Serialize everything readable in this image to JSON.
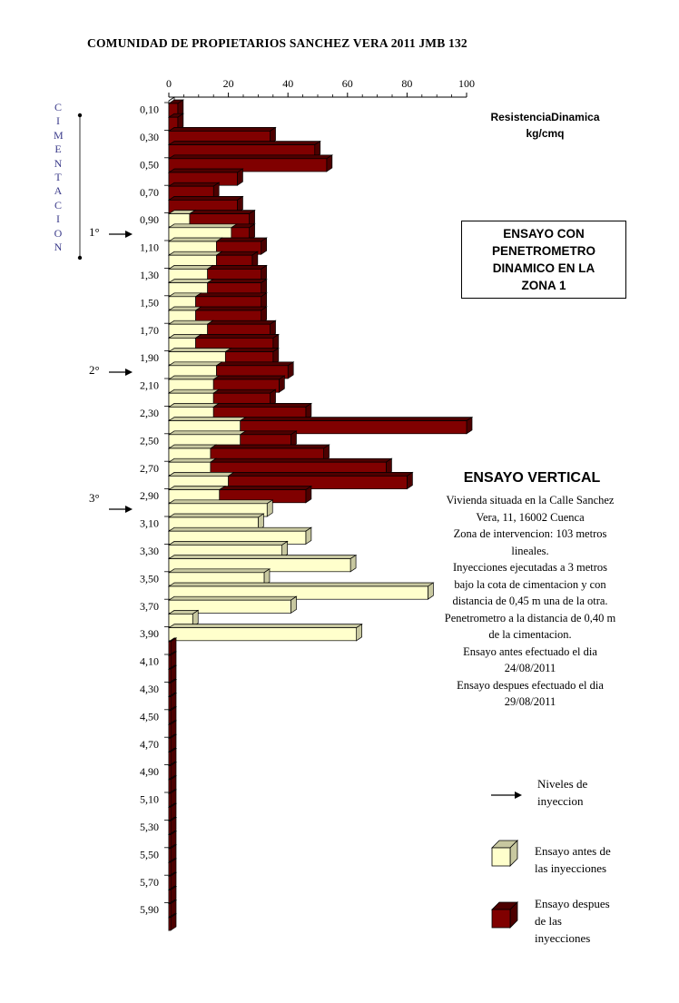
{
  "header": {
    "title": "COMUNIDAD DE PROPIETARIOS SANCHEZ VERA   2011 JMB 132"
  },
  "side_label": {
    "letters": [
      "C",
      "I",
      "M",
      "E",
      "N",
      "T",
      "A",
      "C",
      "I",
      "O",
      "N"
    ]
  },
  "injection_levels": [
    "1°",
    "2°",
    "3°"
  ],
  "unit_label": [
    "ResistenciaDinamica",
    "kg/cmq"
  ],
  "zone_box": [
    "ENSAYO CON",
    "PENETROMETRO",
    "DINAMICO EN LA",
    "ZONA 1"
  ],
  "description": {
    "title": "ENSAYO VERTICAL",
    "lines": [
      "Vivienda situada en la Calle Sanchez",
      "Vera, 11, 16002 Cuenca",
      "Zona de intervencion: 103 metros",
      "lineales.",
      "Inyecciones ejecutadas a  3 metros",
      "bajo la cota de cimentacion y con",
      "distancia de 0,45 m una de la otra.",
      "Penetrometro  a la distancia de 0,40 m",
      "de la cimentacion.",
      "Ensayo antes efectuado el dia",
      "24/08/2011",
      "Ensayo despues efectuado el dia",
      "29/08/2011"
    ]
  },
  "legend": {
    "arrow": [
      "Niveles de",
      "inyeccion"
    ],
    "before": [
      "Ensayo antes de",
      "las inyecciones"
    ],
    "after": [
      "Ensayo despues",
      "de las",
      "inyecciones"
    ]
  },
  "colors": {
    "before_face": "#FFFFCC",
    "before_side": "#C8C8A0",
    "after_face": "#800000",
    "after_side": "#4D0000"
  },
  "chart_data": {
    "type": "bar",
    "orientation": "horizontal",
    "x_ticks": [
      0,
      20,
      40,
      60,
      80,
      100
    ],
    "xlim": [
      0,
      100
    ],
    "depth_labels": [
      "0,10",
      "0,30",
      "0,50",
      "0,70",
      "0,90",
      "1,10",
      "1,30",
      "1,50",
      "1,70",
      "1,90",
      "2,10",
      "2,30",
      "2,50",
      "2,70",
      "2,90",
      "3,10",
      "3,30",
      "3,50",
      "3,70",
      "3,90",
      "4,10",
      "4,30",
      "4,50",
      "4,70",
      "4,90",
      "5,10",
      "5,30",
      "5,50",
      "5,70",
      "5,90"
    ],
    "depths": [
      0.1,
      0.2,
      0.3,
      0.4,
      0.5,
      0.6,
      0.7,
      0.8,
      0.9,
      1.0,
      1.1,
      1.2,
      1.3,
      1.4,
      1.5,
      1.6,
      1.7,
      1.8,
      1.9,
      2.0,
      2.1,
      2.2,
      2.3,
      2.4,
      2.5,
      2.6,
      2.7,
      2.8,
      2.9,
      3.0,
      3.1,
      3.2,
      3.3,
      3.4,
      3.5,
      3.6,
      3.7,
      3.8,
      3.9,
      4.0,
      4.1,
      4.2,
      4.3,
      4.4,
      4.5,
      4.6,
      4.7,
      4.8,
      4.9,
      5.0,
      5.1,
      5.2,
      5.3,
      5.4,
      5.5,
      5.6,
      5.7,
      5.8,
      5.9,
      6.0
    ],
    "series": [
      {
        "name": "Ensayo antes de las inyecciones",
        "values": [
          0,
          0,
          0,
          0,
          0,
          0,
          0,
          0,
          7,
          21,
          16,
          16,
          13,
          13,
          9,
          9,
          13,
          9,
          19,
          16,
          15,
          15,
          15,
          24,
          24,
          14,
          14,
          20,
          17,
          33,
          30,
          46,
          38,
          61,
          32,
          87,
          41,
          8,
          63,
          0,
          0,
          0,
          0,
          0,
          0,
          0,
          0,
          0,
          0,
          0,
          0,
          0,
          0,
          0,
          0,
          0,
          0,
          0,
          0,
          0
        ]
      },
      {
        "name": "Ensayo despues de las inyecciones",
        "values": [
          3,
          3,
          34,
          49,
          53,
          23,
          15,
          23,
          27,
          27,
          31,
          28,
          31,
          31,
          31,
          31,
          34,
          35,
          35,
          40,
          37,
          34,
          46,
          100,
          41,
          52,
          73,
          80,
          46,
          0,
          0,
          0,
          0,
          0,
          0,
          0,
          0,
          0,
          0,
          0,
          0,
          0,
          0,
          0,
          0,
          0,
          0,
          0,
          0,
          0,
          0,
          0,
          0,
          0,
          0,
          0,
          0,
          0,
          0,
          0
        ]
      }
    ]
  }
}
